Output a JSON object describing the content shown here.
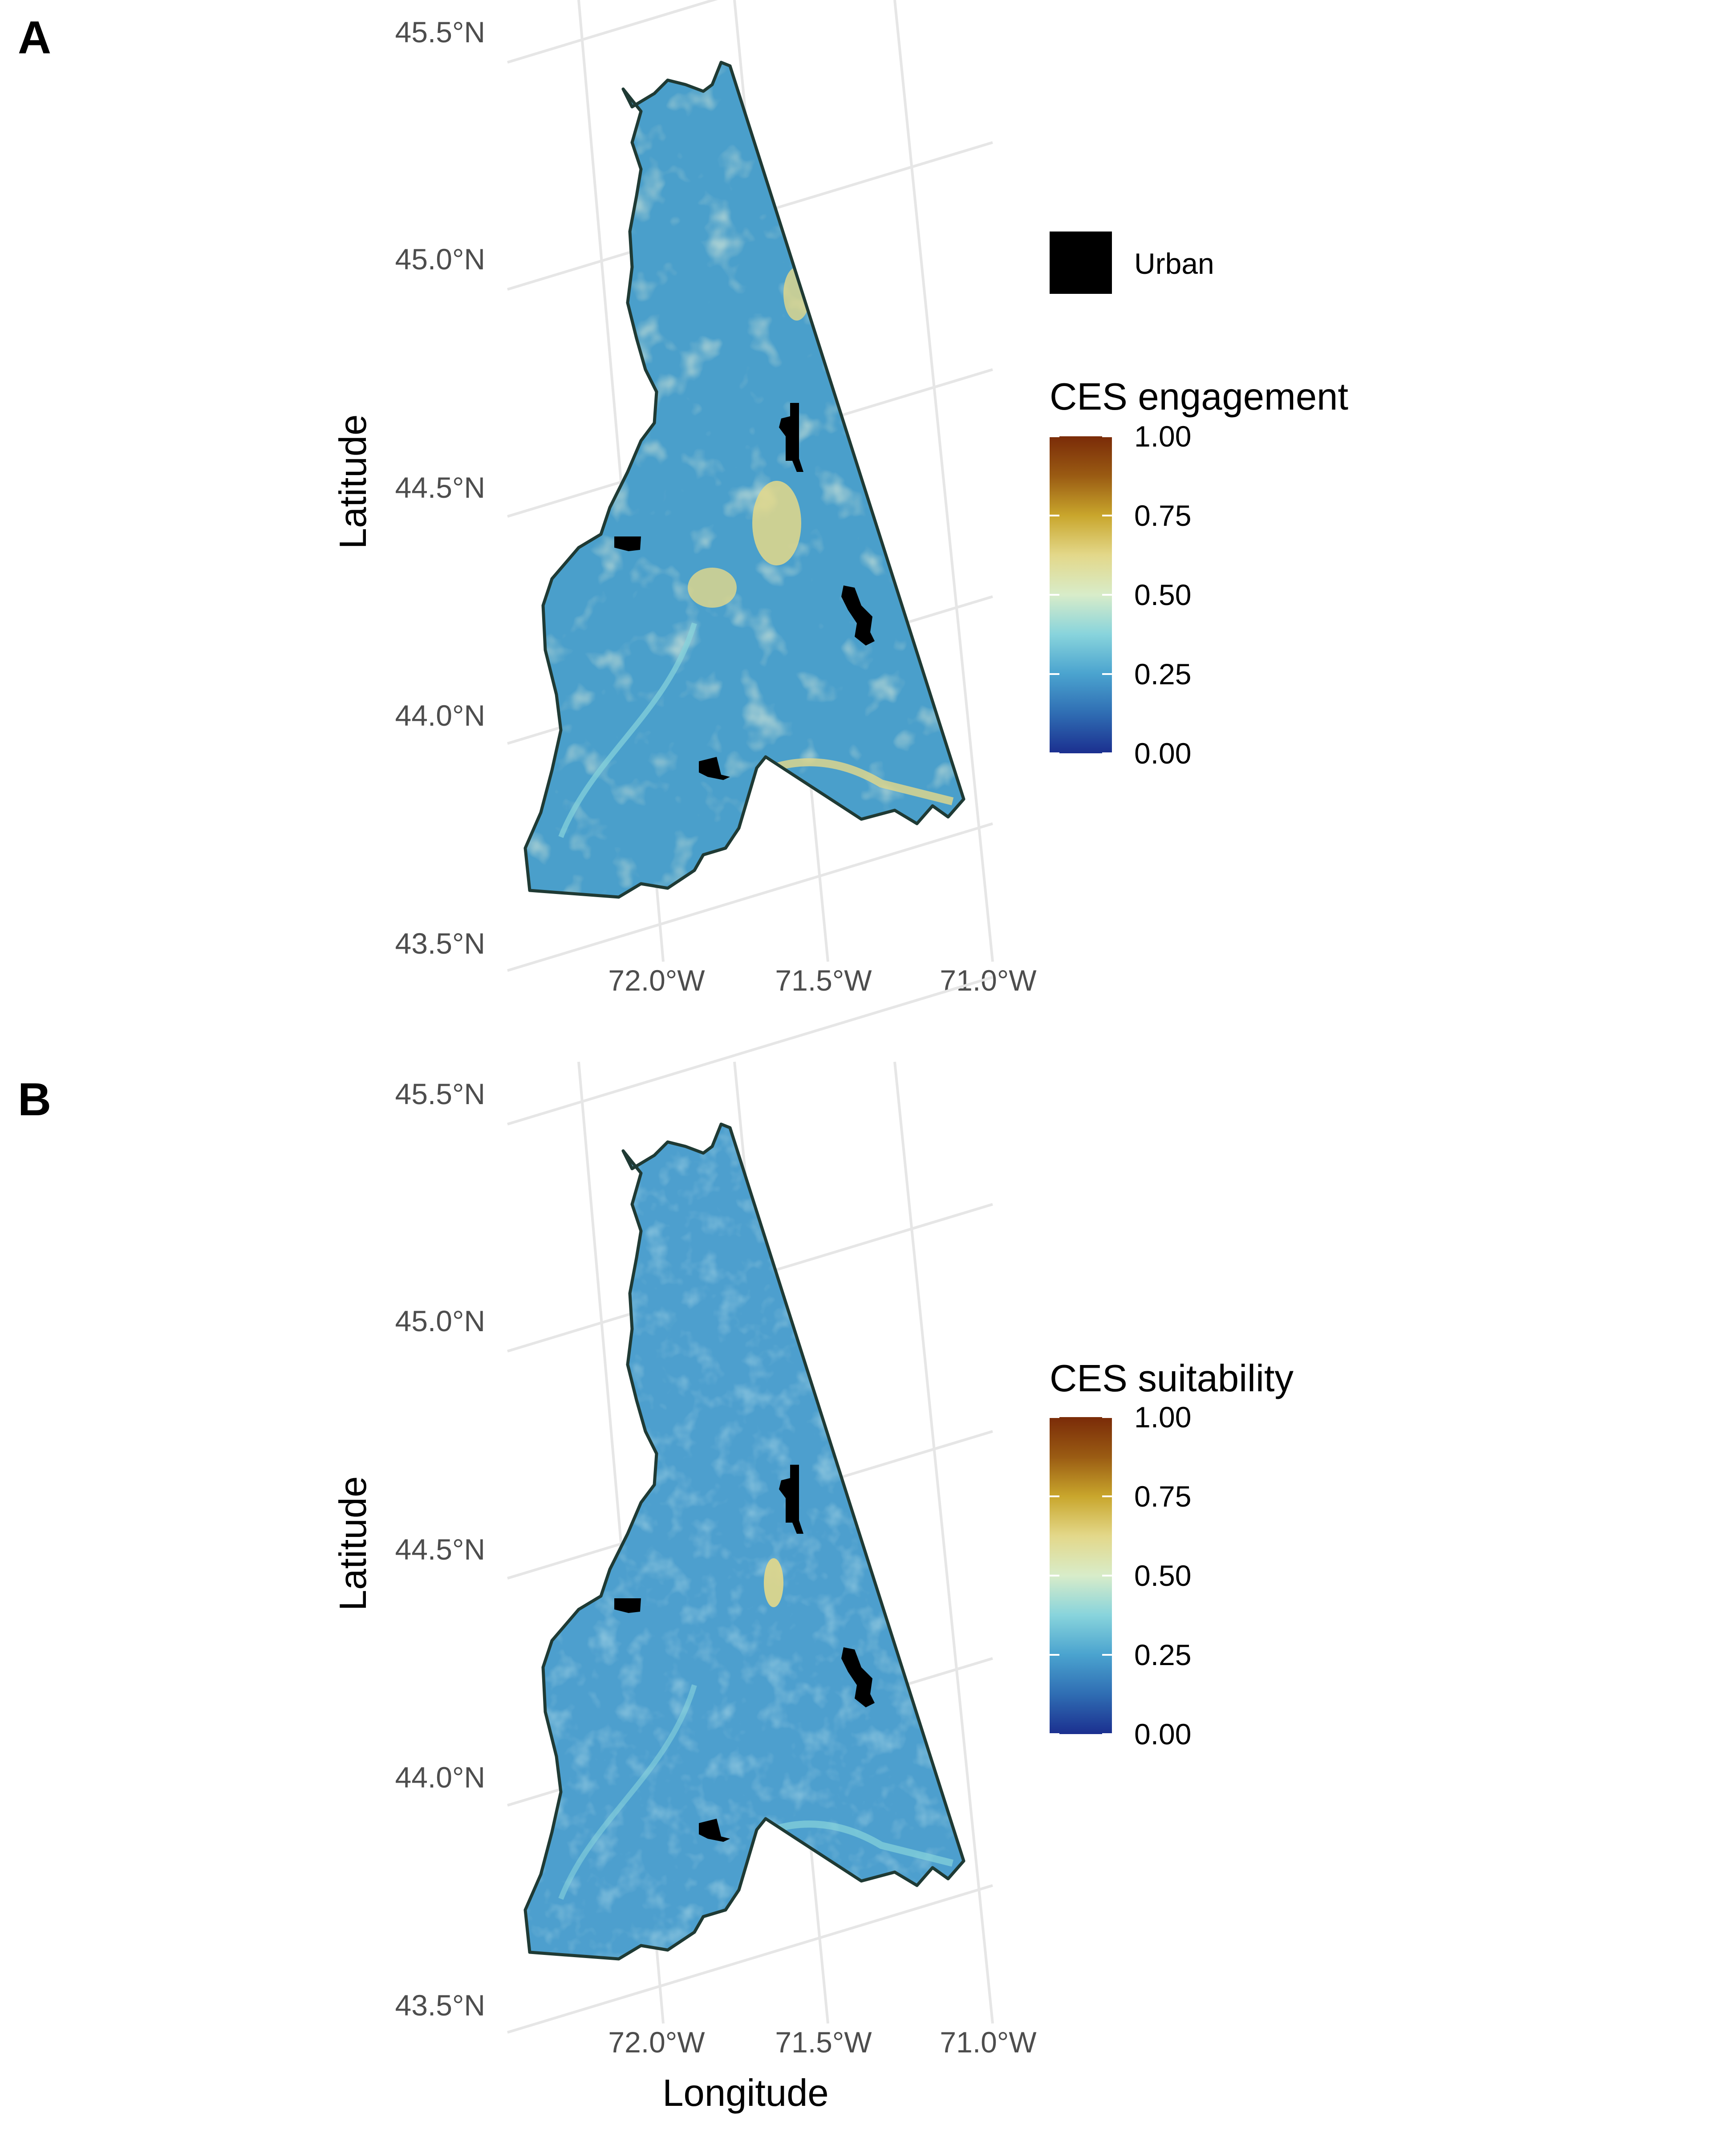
{
  "figure": {
    "panels": [
      {
        "letter": "A",
        "legend_urban_label": "Urban",
        "legend_title": "CES engagement",
        "colorbar_ticks": [
          "1.00",
          "0.75",
          "0.50",
          "0.25",
          "0.00"
        ],
        "latitude_ticks": [
          "45.5°N",
          "45.0°N",
          "44.5°N",
          "44.0°N",
          "43.5°N"
        ],
        "longitude_ticks": [
          "72.0°W",
          "71.5°W",
          "71.0°W"
        ],
        "ylabel": "Latitude",
        "xlabel": "",
        "fill_color": "#4a9fcb",
        "fill_variant": "engagement"
      },
      {
        "letter": "B",
        "legend_urban_label": "",
        "legend_title": "CES suitability",
        "colorbar_ticks": [
          "1.00",
          "0.75",
          "0.50",
          "0.25",
          "0.00"
        ],
        "latitude_ticks": [
          "45.5°N",
          "45.0°N",
          "44.5°N",
          "44.0°N",
          "43.5°N"
        ],
        "longitude_ticks": [
          "72.0°W",
          "71.5°W",
          "71.0°W"
        ],
        "ylabel": "Latitude",
        "xlabel": "Longitude",
        "fill_color": "#4d9fce",
        "fill_variant": "suitability"
      }
    ]
  },
  "colors": {
    "colorscale": [
      "#1b2f8f",
      "#2f6db3",
      "#4aa3cf",
      "#88d4dc",
      "#d8ecc9",
      "#e3d88a",
      "#c9a62c",
      "#9a5b13",
      "#7a2b08"
    ],
    "urban": "#000000",
    "outline": "#1f3a34",
    "grid": "#e6e6e6"
  }
}
